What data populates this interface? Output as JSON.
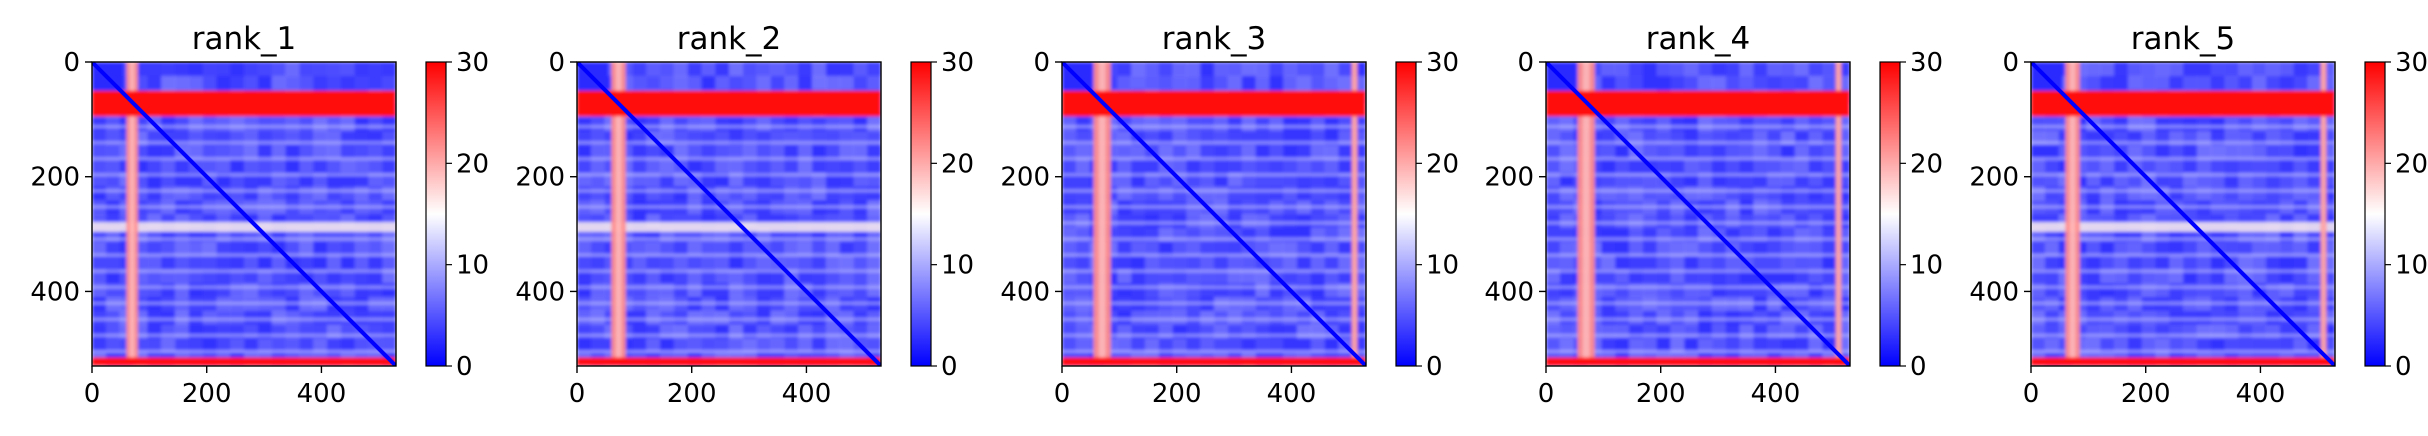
{
  "figure": {
    "colormap": {
      "name": "bwr",
      "low": "#0000ff",
      "mid": "#ffffff",
      "high": "#ff0000"
    }
  },
  "chart_data": [
    {
      "type": "heatmap",
      "title": "rank_1",
      "xlim": [
        0,
        530
      ],
      "ylim": [
        530,
        0
      ],
      "xticks": [
        0,
        200,
        400
      ],
      "yticks": [
        0,
        200,
        400
      ],
      "colorbar": {
        "min": 0,
        "max": 30,
        "ticks": [
          0,
          10,
          20,
          30
        ]
      },
      "bands": {
        "high_rows": [
          [
            50,
            95
          ],
          [
            515,
            530
          ]
        ],
        "high_cols": [
          [
            60,
            80
          ]
        ],
        "light_rows": [
          [
            280,
            296
          ]
        ]
      }
    },
    {
      "type": "heatmap",
      "title": "rank_2",
      "xlim": [
        0,
        530
      ],
      "ylim": [
        530,
        0
      ],
      "xticks": [
        0,
        200,
        400
      ],
      "yticks": [
        0,
        200,
        400
      ],
      "colorbar": {
        "min": 0,
        "max": 30,
        "ticks": [
          0,
          10,
          20,
          30
        ]
      },
      "bands": {
        "high_rows": [
          [
            50,
            95
          ],
          [
            515,
            530
          ]
        ],
        "high_cols": [
          [
            60,
            85
          ]
        ],
        "light_rows": [
          [
            280,
            296
          ]
        ]
      }
    },
    {
      "type": "heatmap",
      "title": "rank_3",
      "xlim": [
        0,
        530
      ],
      "ylim": [
        530,
        0
      ],
      "xticks": [
        0,
        200,
        400
      ],
      "yticks": [
        0,
        200,
        400
      ],
      "colorbar": {
        "min": 0,
        "max": 30,
        "ticks": [
          0,
          10,
          20,
          30
        ]
      },
      "bands": {
        "high_rows": [
          [
            50,
            95
          ],
          [
            515,
            530
          ]
        ],
        "high_cols": [
          [
            55,
            85
          ],
          [
            505,
            515
          ]
        ],
        "light_rows": []
      }
    },
    {
      "type": "heatmap",
      "title": "rank_4",
      "xlim": [
        0,
        530
      ],
      "ylim": [
        530,
        0
      ],
      "xticks": [
        0,
        200,
        400
      ],
      "yticks": [
        0,
        200,
        400
      ],
      "colorbar": {
        "min": 0,
        "max": 30,
        "ticks": [
          0,
          10,
          20,
          30
        ]
      },
      "bands": {
        "high_rows": [
          [
            50,
            95
          ],
          [
            515,
            530
          ]
        ],
        "high_cols": [
          [
            55,
            85
          ],
          [
            505,
            515
          ]
        ],
        "light_rows": []
      }
    },
    {
      "type": "heatmap",
      "title": "rank_5",
      "xlim": [
        0,
        530
      ],
      "ylim": [
        530,
        0
      ],
      "xticks": [
        0,
        200,
        400
      ],
      "yticks": [
        0,
        200,
        400
      ],
      "colorbar": {
        "min": 0,
        "max": 30,
        "ticks": [
          0,
          10,
          20,
          30
        ]
      },
      "bands": {
        "high_rows": [
          [
            50,
            95
          ],
          [
            515,
            530
          ]
        ],
        "high_cols": [
          [
            60,
            85
          ],
          [
            505,
            515
          ]
        ],
        "light_rows": [
          [
            280,
            296
          ]
        ]
      }
    }
  ]
}
